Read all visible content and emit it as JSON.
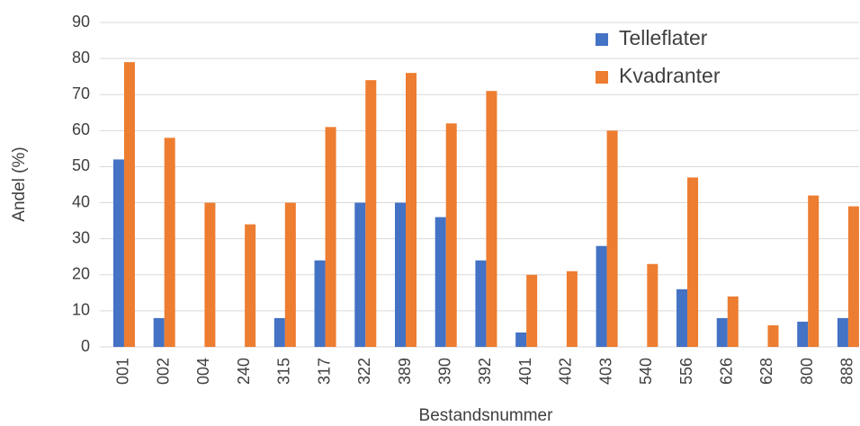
{
  "chart_data": {
    "type": "bar",
    "x_label": "Bestandsnummer",
    "y_label": "Andel (%)",
    "categories": [
      "001",
      "002",
      "004",
      "240",
      "315",
      "317",
      "322",
      "389",
      "390",
      "392",
      "401",
      "402",
      "403",
      "540",
      "556",
      "626",
      "628",
      "800",
      "888"
    ],
    "series": [
      {
        "name": "Telleflater",
        "color": "#4472c4",
        "values": [
          52,
          8,
          0,
          0,
          8,
          24,
          40,
          40,
          36,
          24,
          4,
          0,
          28,
          0,
          16,
          8,
          0,
          7,
          8
        ]
      },
      {
        "name": "Kvadranter",
        "color": "#ed7d31",
        "values": [
          79,
          58,
          40,
          34,
          40,
          61,
          74,
          76,
          62,
          71,
          20,
          21,
          60,
          23,
          47,
          14,
          6,
          42,
          39
        ]
      }
    ],
    "ylim": [
      0,
      90
    ],
    "yticks": [
      0,
      10,
      20,
      30,
      40,
      50,
      60,
      70,
      80,
      90
    ],
    "grid": true,
    "legend": "upper right"
  }
}
